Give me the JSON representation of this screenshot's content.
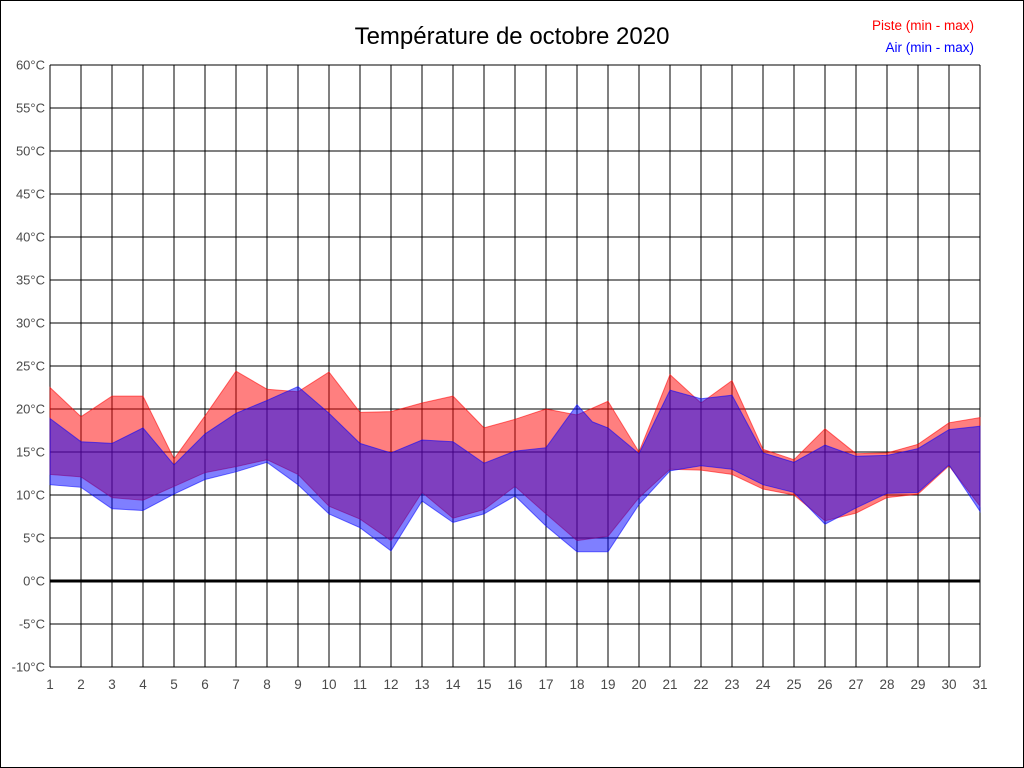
{
  "window": {
    "title": "Température de octobre 2020"
  },
  "legend": {
    "piste_label": "Piste (min - max)",
    "air_label": "Air (min - max)"
  },
  "chart_data": {
    "type": "area",
    "title": "Température de octobre 2020",
    "xlabel": "",
    "ylabel": "",
    "y_unit": "°C",
    "ylim": [
      -10,
      60
    ],
    "ytick_step": 5,
    "grid": true,
    "zero_line_bold": true,
    "legend_position": "top-right",
    "y_tick_labels": [
      "60°C",
      "55°C",
      "50°C",
      "45°C",
      "40°C",
      "35°C",
      "30°C",
      "25°C",
      "20°C",
      "15°C",
      "10°C",
      "5°C",
      "0°C",
      "-5°C",
      "-10°C"
    ],
    "x_tick_labels": [
      "1",
      "2",
      "3",
      "4",
      "5",
      "6",
      "7",
      "8",
      "9",
      "10",
      "11",
      "12",
      "13",
      "14",
      "15",
      "16",
      "17",
      "18",
      "19",
      "20",
      "21",
      "22",
      "23",
      "24",
      "25",
      "26",
      "27",
      "28",
      "29",
      "30",
      "31"
    ],
    "days": [
      1,
      2,
      3,
      4,
      5,
      6,
      7,
      8,
      9,
      10,
      11,
      12,
      13,
      14,
      15,
      16,
      17,
      18,
      19,
      20,
      21,
      22,
      23,
      24,
      25,
      26,
      27,
      28,
      29,
      30,
      31
    ],
    "series": [
      {
        "name": "Piste (min - max)",
        "color": "#FF0000",
        "fill_opacity": 0.5,
        "max": [
          22.5,
          19.1,
          21.5,
          21.5,
          14.2,
          19.2,
          24.4,
          22.3,
          22.0,
          24.3,
          19.6,
          19.7,
          20.7,
          21.5,
          17.8,
          18.8,
          20.0,
          19.3,
          20.9,
          15.0,
          24.0,
          20.7,
          23.3,
          15.3,
          14.1,
          17.7,
          14.8,
          14.9,
          15.9,
          18.4,
          19.0
        ],
        "min": [
          12.4,
          12.1,
          9.7,
          9.4,
          11.0,
          12.6,
          13.3,
          14.1,
          12.4,
          8.7,
          7.2,
          4.7,
          10.3,
          7.3,
          8.3,
          11.0,
          7.8,
          4.7,
          5.2,
          9.7,
          13.0,
          12.9,
          12.4,
          10.7,
          10.0,
          7.0,
          7.9,
          9.7,
          10.1,
          13.4,
          8.7
        ],
        "extra_max_vertices": [],
        "extra_min_vertices": []
      },
      {
        "name": "Air (min - max)",
        "color": "#0000FF",
        "fill_opacity": 0.5,
        "max": [
          18.9,
          16.2,
          16.0,
          17.8,
          13.5,
          17.1,
          19.5,
          21.0,
          22.6,
          19.5,
          16.0,
          14.9,
          16.4,
          16.2,
          13.7,
          15.1,
          15.5,
          20.5,
          17.8,
          14.8,
          22.2,
          21.2,
          21.6,
          14.9,
          13.8,
          15.8,
          14.5,
          14.6,
          15.4,
          17.6,
          18.0
        ],
        "min": [
          11.2,
          10.9,
          8.4,
          8.2,
          10.1,
          11.8,
          12.7,
          13.8,
          11.2,
          7.8,
          6.2,
          3.5,
          9.3,
          6.8,
          7.8,
          9.9,
          6.4,
          3.4,
          3.4,
          8.9,
          12.8,
          13.4,
          13.0,
          11.2,
          10.3,
          6.6,
          8.5,
          10.2,
          10.3,
          13.5,
          8.1
        ],
        "extra_max_vertices": [
          [
            18.5,
            18.5
          ]
        ],
        "extra_min_vertices": []
      }
    ]
  }
}
